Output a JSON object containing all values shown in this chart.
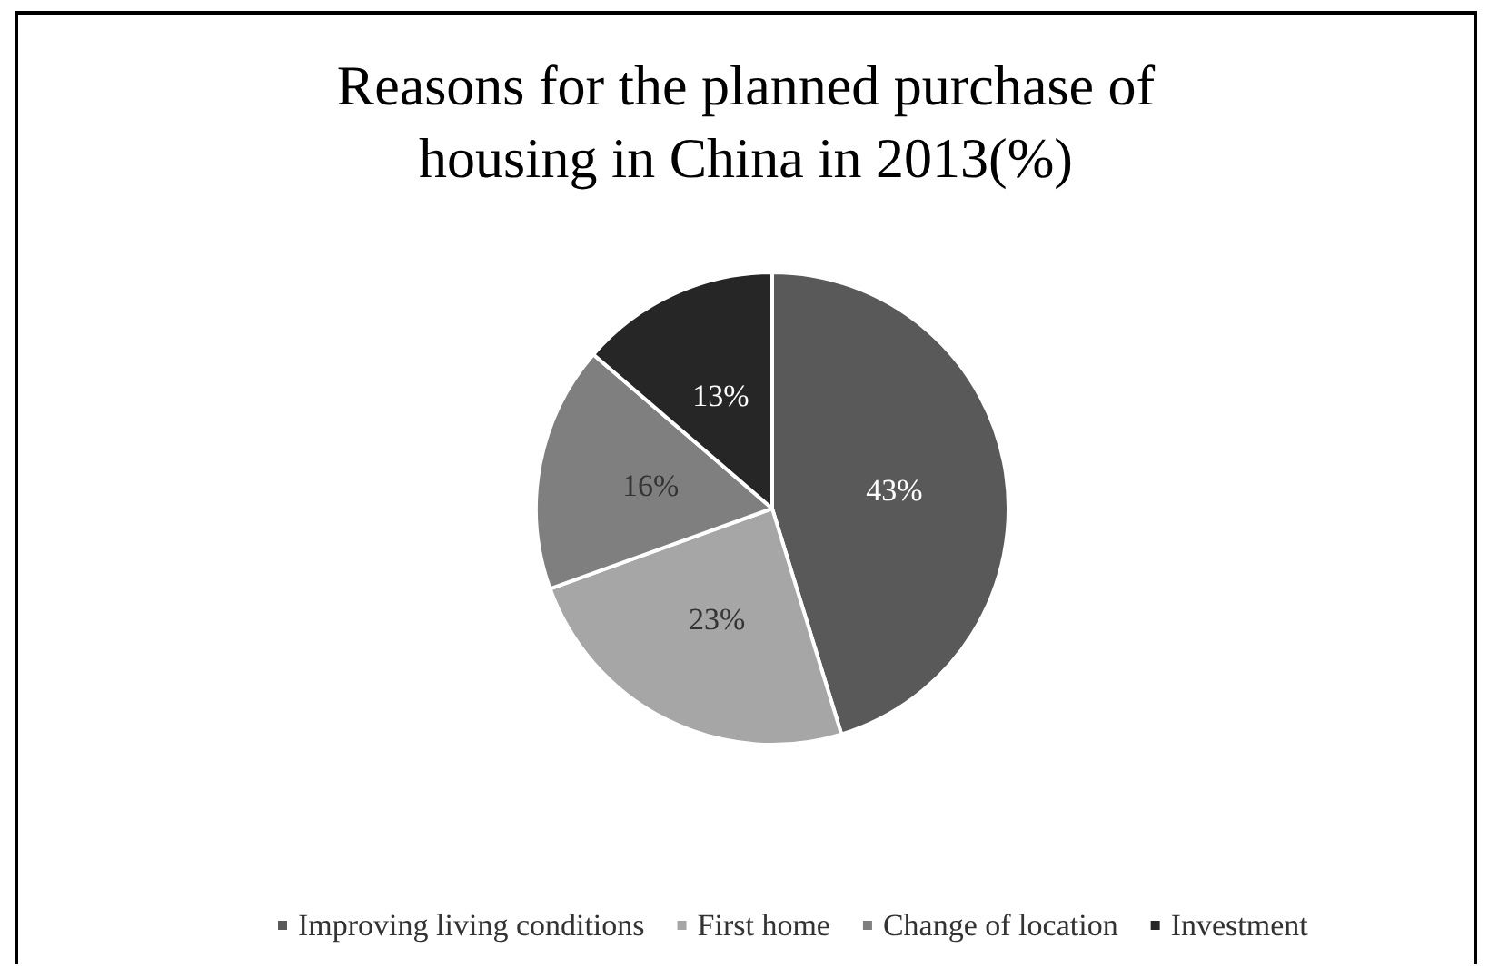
{
  "chart_data": {
    "type": "pie",
    "title": "Reasons for the planned purchase of\nhousing in China in 2013(%)",
    "categories": [
      "Improving living conditions",
      "First home",
      "Change of location",
      "Investment"
    ],
    "values": [
      43,
      23,
      16,
      13
    ],
    "colors": [
      "#595959",
      "#a6a6a6",
      "#7f7f7f",
      "#262626"
    ],
    "value_labels": [
      "43%",
      "23%",
      "16%",
      "13%"
    ],
    "legend": "bottom"
  }
}
